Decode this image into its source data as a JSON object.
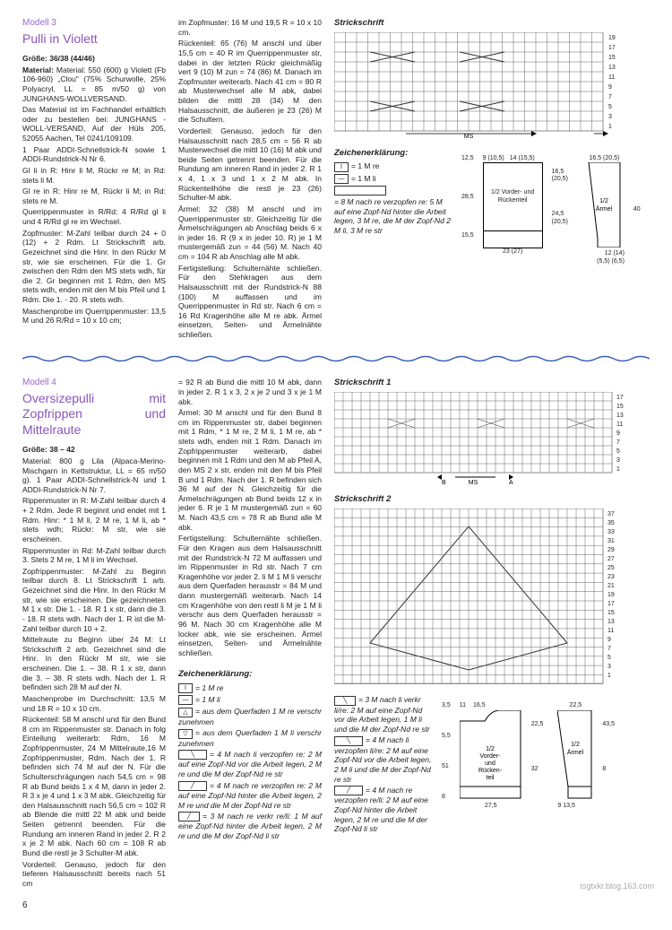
{
  "m3": {
    "num": "Modell 3",
    "title": "Pulli in Violett",
    "c1": {
      "size": "Größe: 36/38 (44/46)",
      "mat": "Material: 550 (600) g Violett (Fb 106-960) „Clou\" (75% Schurwolle, 25% Polyacryl, LL = 85 m/50 g) von JUNGHANS-WOLLVERSAND.",
      "mat2": "Das Material ist im Fachhandel erhältlich oder zu bestellen bei: JUNGHANS -WOLL-VERSAND, Auf der Hüls 205, 52055 Aachen, Tel 0241/109109.",
      "mat3": "1 Paar ADDI-Schnellstrick-N sowie 1 ADDI-Rundstrick-N Nr 6.",
      "gl1": "Gl li in R: Hinr li M, Rückr re M; in Rd: stets li M.",
      "gl2": "Gl re in R: Hinr re M, Rückr li M; in Rd: stets re M.",
      "quer": "Querrippenmuster in R/Rd: 4 R/Rd gl li und 4 R/Rd gl re im Wechsel.",
      "zopf": "Zopfmuster: M-Zahl teilbar durch 24 + 0 (12) + 2 Rdm. Lt Strickschrift arb. Gezeichnet sind die Hinr. In den Rückr M str, wie sie erscheinen. Für die 1. Gr zwischen den Rdm den MS stets wdh, für die 2. Gr beginnen mit 1 Rdm, den MS stets wdh, enden mit den M bis Pfeil und 1 Rdm. Die 1. - 20. R stets wdh.",
      "masch": "Maschenprobe im Querrippenmuster: 13,5 M und 26 R/Rd = 10 x 10 cm;"
    },
    "c2": {
      "zopf2": "im Zopfmuster: 16 M und 19,5 R = 10 x 10 cm.",
      "ruck": "Rückenteil: 65 (76) M anschl und über 15,5 cm = 40 R im Querrippenmuster str, dabei in der letzten Rückr gleichmäßig vert 9 (10) M zun = 74 (86) M. Danach im Zopfmuster weiterarb. Nach 41 cm = 80 R ab Musterwechsel alle M abk, dabei bilden die mittl 28 (34) M den Halsausschnitt, die äußeren je 23 (26) M die Schultern.",
      "vord": "Vorderteil: Genauso, jedoch für den Halsausschnitt nach 28,5 cm = 56 R ab Musterwechsel die mittl 10 (16) M abk und beide Seiten getrennt beenden. Für die Rundung am inneren Rand in jeder 2. R 1 x 4, 1 x 3 und 1 x 2 M abk. In Rückenteilhöhe die restl je 23 (26) Schulter-M abk.",
      "arm": "Ärmel: 32 (38) M anschl und im Querrippenmuster str. Gleichzeitig für die Ärmelschrägungen ab Anschlag beids 6 x in jeder 16. R (9 x in jeder 10. R) je 1 M mustergemäß zun = 44 (56) M. Nach 40 cm = 104 R ab Anschlag alle M abk.",
      "fert": "Fertigstellung: Schulternähte schließen. Für den Stehkragen aus dem Halsausschnitt mit der Rundstrick-N 88 (100) M auffassen und im Querrippenmuster in Rd str. Nach 6 cm = 16 Rd Kragenhöhe alle M re abk. Ärmel einsetzen, Seiten- und Ärmelnähte schließen."
    },
    "diag": {
      "strick": "Strickschrift",
      "zeich": "Zeichenerklärung:",
      "l1": "= 1 M re",
      "l2": "= 1 M li",
      "l3": "= 8 M nach re verzopfen re: 5 M auf eine Zopf-Nd hinter die Arbeit legen, 3 M re, die M der Zopf-Nd 2 M li, 3 M re str",
      "ms": "MS",
      "sch1_label": "1/2 Vorder- und Rückenteil",
      "sch2_label": "1/2 Ärmel",
      "d1": "12,5",
      "d2": "28,5",
      "d3": "15,5",
      "d4": "9 (10,5)",
      "d5": "14 (15,5)",
      "d6": "16,5 (20,5)",
      "d7": "24,5 (20,5)",
      "d8": "23 (27)",
      "d9": "16,5 (20,5)",
      "d10": "40",
      "d11": "12 (14)",
      "d12": "(5,5) (6,5)"
    }
  },
  "m4": {
    "num": "Modell 4",
    "title": "Oversizepulli mit Zopfrippen und Mittelraute",
    "c1": {
      "size": "Größe: 38 – 42",
      "mat": "Material: 800 g Lila (Alpaca-Merino-Mischgarn in Kettstruktur, LL = 65 m/50 g). 1 Paar ADDI-Schnellstrick-N und 1 ADDI-Rundstrick-N Nr 7.",
      "ripp1": "Rippenmuster in R: M-Zahl teilbar durch 4 + 2 Rdm. Jede R beginnt und endet mit 1 Rdm. Hinr: * 1 M li, 2 M re, 1 M li, ab * stets wdh; Rückr: M str, wie sie erscheinen.",
      "ripp2": "Rippenmuster in Rd: M-Zahl teilbar durch 3. Stets 2 M re, 1 M li im Wechsel.",
      "zopf": "Zopfrippenmuster: M-Zahl zu Beginn teilbar durch 8. Lt Strickschrift 1 arb. Gezeichnet sind die Hinr. In den Rückr M str, wie sie erscheinen. Die gezeichneten M 1 x str. Die 1. - 18. R 1 x str, dann die 3. - 18. R stets wdh. Nach der 1. R ist die M-Zahl teilbar durch 10 + 2.",
      "mitt": "Mittelraute zu Beginn über 24 M: Lt Strickschrift 2 arb. Gezeichnet sind die Hinr. In den Rückr M str, wie sie erscheinen. Die 1. – 38. R 1 x str, dann die 3. – 38. R stets wdh. Nach der 1. R befinden sich 28 M auf der N.",
      "masch": "Maschenprobe im Durchschnitt: 13,5 M und 18 R = 10 x 10 cm.",
      "ruck": "Rückenteil: 58 M anschl und für den Bund 8 cm im Rippenmuster str. Danach in folg Einteilung weiterarb: Rdm, 16 M Zopfrippenmuster, 24 M Mittelraute,16 M Zopfrippenmuster, Rdm. Nach der 1. R befinden sich 74 M auf der N. Für die Schulterschrägungen nach 54,5 cm = 98 R ab Bund beids 1 x 4 M, dann in jeder 2. R 3 x je 4 und 1 x 3 M abk. Gleichzeitig für den Halsausschnitt nach 56,5 cm = 102 R ab Blende die mittl 22 M abk und beide Seiten getrennt beenden. Für die Rundung am inneren Rand in jeder 2. R 2 x je 2 M abk. Nach 60 cm = 108 R ab Bund die restl je 3 Schulter-M abk.",
      "vord": "Vorderteil: Genauso, jedoch für den tieferen Halsausschnitt bereits nach 51 cm"
    },
    "c2": {
      "vord2": "= 92 R ab Bund die mittl 10 M abk, dann in jeder 2. R 1 x 3, 2 x je 2 und 3 x je 1 M abk.",
      "arm": "Ärmel: 30 M anschl und für den Bund 8 cm im Rippenmuster str, dabei beginnen mit 1 Rdm, * 1 M re, 2 M li, 1 M re, ab * stets wdh, enden mit 1 Rdm. Danach im Zopfrippenmuster weiterarb, dabei beginnen mit 1 Rdm und den M ab Pfeil A, den MS 2 x str, enden mit den M bis Pfeil B und 1 Rdm. Nach der 1. R befinden sich 36 M auf der N. Gleichzeitig für die Ärmelschrägungen ab Bund beids 12 x in jeder 6. R je 1 M mustergemäß zun = 60 M. Nach 43,5 cm = 78 R ab Bund alle M abk.",
      "fert": "Fertigstellung: Schulternähte schließen. Für den Kragen aus dem Halsausschnitt mit der Rundstrick-N 72 M auffassen und im Rippenmuster in Rd str. Nach 7 cm Kragenhöhe vor jeder 2. li M 1 M li verschr aus dem Querfaden herausstr = 84 M und dann mustergemäß weiterarb. Nach 14 cm Kragenhöhe von den restl li M je 1 M li verschr aus dem Querfaden herausstr = 96 M. Nach 30 cm Kragenhöhe alle M locker abk, wie sie erscheinen. Ärmel einsetzen, Seiten- und Ärmelnähte schließen.",
      "zeich": "Zeichenerklärung:",
      "l1": "= 1 M re",
      "l2": "= 1 M li",
      "l3": "= aus dem Querfaden 1 M re verschr zunehmen",
      "l4": "= aus dem Querfaden 1 M li verschr zunehmen",
      "l5": "= 4 M nach li verzopfen re: 2 M auf eine Zopf-Nd vor die Arbeit legen, 2 M re und die M der Zopf-Nd re str",
      "l6": "= 4 M nach re verzopfen re: 2 M auf eine Zopf-Nd hinter die Arbeit legen, 2 M re und die M der Zopf-Nd re str",
      "l7": "= 3 M nach re verkr re/li: 1 M auf eine Zopf-Nd hinter die Arbeit legen, 2 M re und die M der Zopf-Nd li str"
    },
    "diag": {
      "s1": "Strickschrift 1",
      "s2": "Strickschrift 2",
      "ms": "MS",
      "a": "A",
      "b": "B",
      "l8": "= 3 M nach li verkr li/re: 2 M auf eine Zopf-Nd vor die Arbeit legen, 1 M li und die M der Zopf-Nd re str",
      "l9": "= 4 M nach li verzopfen li/re: 2 M auf eine Zopf-Nd vor die Arbeit legen, 2 M li und die M der Zopf-Nd re str",
      "l10": "= 4 M nach re verzopfen re/li: 2 M auf eine Zopf-Nd hinter die Arbeit legen, 2 M re und die M der Zopf-Nd li str",
      "sch1": "1/2 Vorder- und Rückenteil",
      "sch2": "1/2 Ärmel",
      "d1": "3,5",
      "d2": "5,5",
      "d3": "51",
      "d4": "8",
      "d5": "11",
      "d6": "16,5",
      "d7": "22,5",
      "d8": "32",
      "d9": "27,5",
      "d10": "22,5",
      "d11": "43,5",
      "d12": "8",
      "d13": "9",
      "d14": "13,5"
    }
  },
  "page": "6",
  "watermark": "tsgtxkr.blog.163.com"
}
